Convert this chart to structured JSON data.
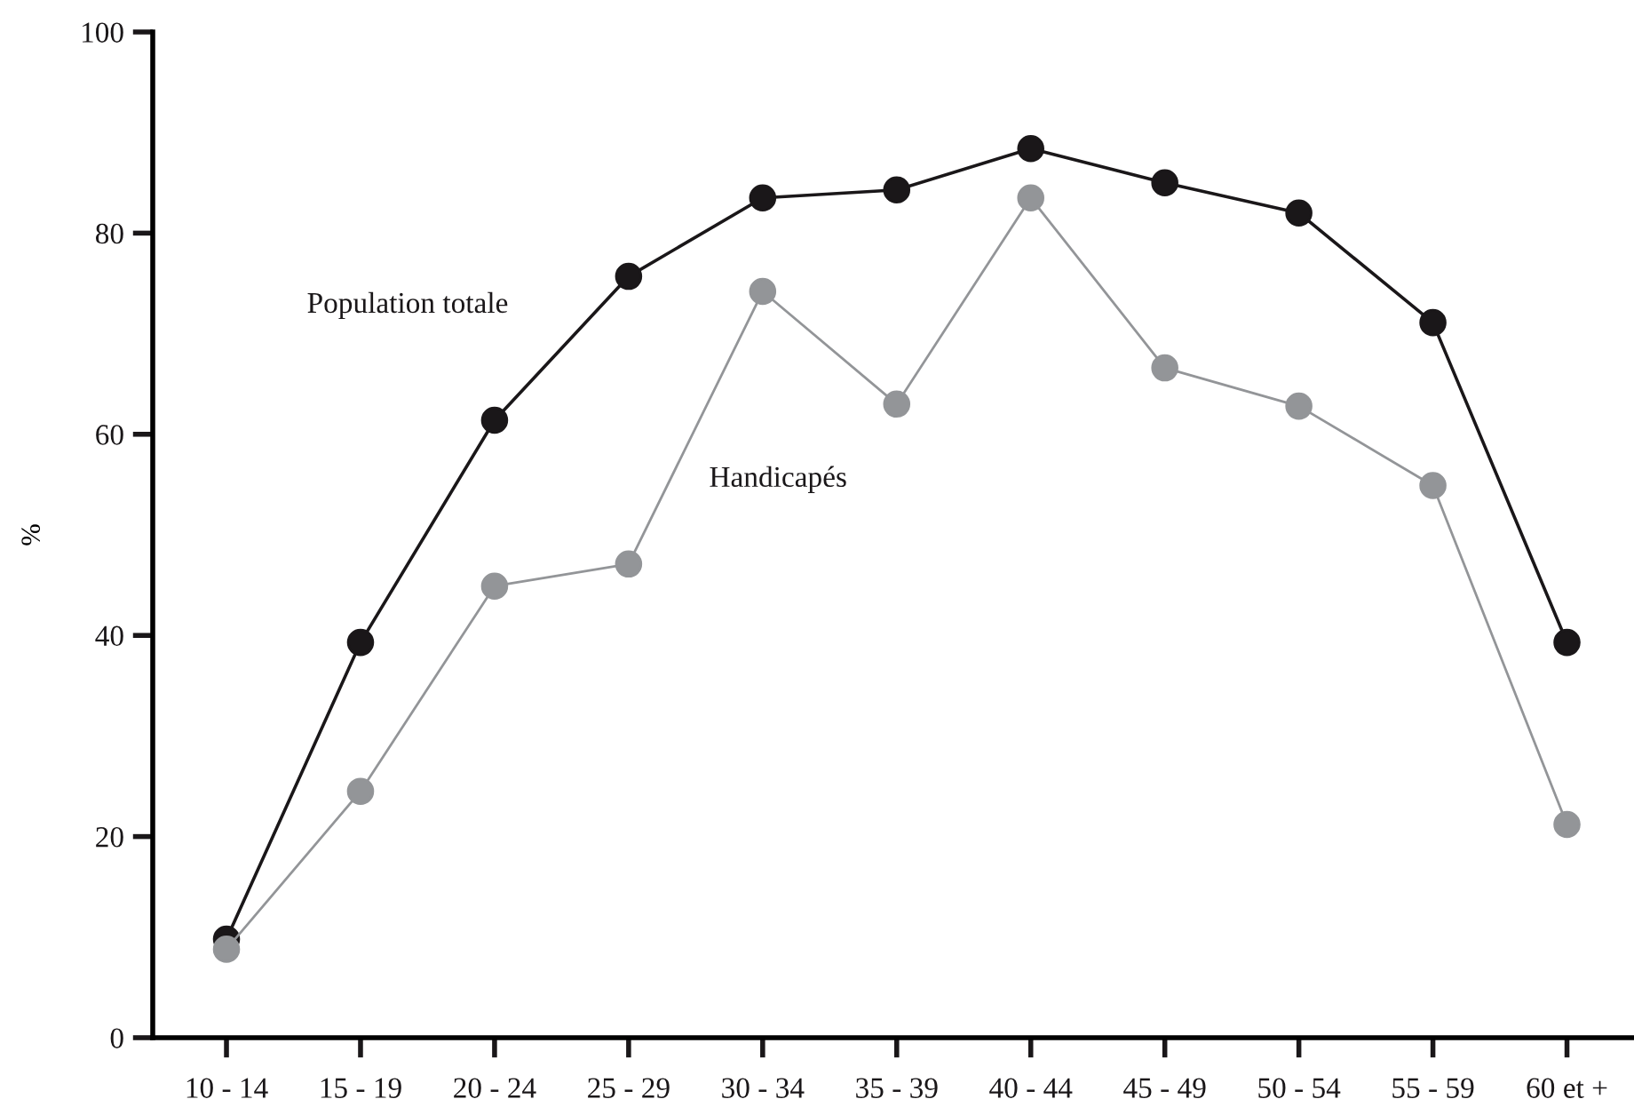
{
  "chart_data": {
    "type": "line",
    "ylabel": "%",
    "categories": [
      "10 - 14",
      "15 - 19",
      "20 - 24",
      "25 - 29",
      "30 - 34",
      "35 - 39",
      "40 - 44",
      "45 - 49",
      "50 - 54",
      "55 - 59",
      "60 et +"
    ],
    "series": [
      {
        "name": "Population totale",
        "color": "#1a1719",
        "values": [
          9.8,
          39.3,
          61.4,
          75.7,
          83.5,
          84.3,
          88.4,
          85.0,
          82.0,
          71.1,
          39.3
        ]
      },
      {
        "name": "Handicapés",
        "color": "#939598",
        "values": [
          8.8,
          24.5,
          44.9,
          47.1,
          74.2,
          63.0,
          83.5,
          66.6,
          62.8,
          54.9,
          21.2
        ]
      }
    ],
    "ylim": [
      0,
      100
    ],
    "yticks": [
      0,
      20,
      40,
      60,
      80,
      100
    ],
    "grid": false,
    "legend": false,
    "marker": "circle",
    "line_style": "solid"
  }
}
